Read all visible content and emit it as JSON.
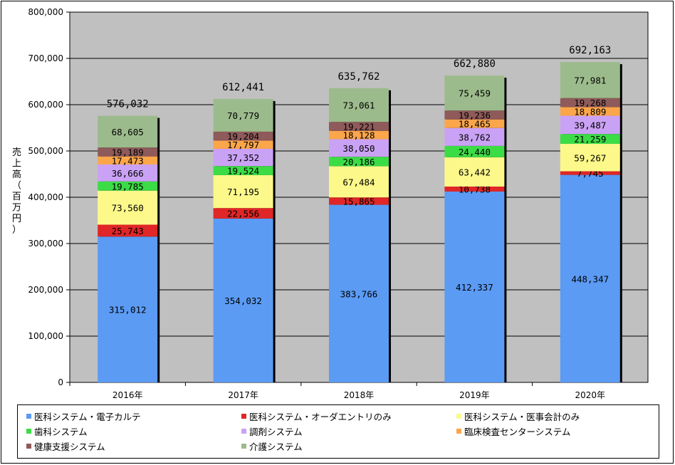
{
  "chart_data": {
    "type": "stacked-bar",
    "ylabel": "売上高（百万円）",
    "ylim": [
      0,
      800000
    ],
    "ytick_step": 100000,
    "ytick_labels": [
      "0",
      "100,000",
      "200,000",
      "300,000",
      "400,000",
      "500,000",
      "600,000",
      "700,000",
      "800,000"
    ],
    "categories": [
      "2016年",
      "2017年",
      "2018年",
      "2019年",
      "2020年"
    ],
    "totals": [
      576032,
      612441,
      635762,
      662880,
      692163
    ],
    "total_labels": [
      "576,032",
      "612,441",
      "635,762",
      "662,880",
      "692,163"
    ],
    "series": [
      {
        "name": "医科システム・電子カルテ",
        "color": "#5b9bf4",
        "values": [
          315012,
          354032,
          383766,
          412337,
          448347
        ],
        "labels": [
          "315,012",
          "354,032",
          "383,766",
          "412,337",
          "448,347"
        ]
      },
      {
        "name": "医科システム・オーダエントリのみ",
        "color": "#e02626",
        "values": [
          25743,
          22556,
          15865,
          10738,
          7745
        ],
        "labels": [
          "25,743",
          "22,556",
          "15,865",
          "10,738",
          "7,745"
        ]
      },
      {
        "name": "医科システム・医事会計のみ",
        "color": "#fcf88a",
        "values": [
          73560,
          71195,
          67484,
          63442,
          59267
        ],
        "labels": [
          "73,560",
          "71,195",
          "67,484",
          "63,442",
          "59,267"
        ]
      },
      {
        "name": "歯科システム",
        "color": "#3cdc46",
        "values": [
          19785,
          19524,
          20186,
          24440,
          21259
        ],
        "labels": [
          "19,785",
          "19,524",
          "20,186",
          "24,440",
          "21,259"
        ]
      },
      {
        "name": "調剤システム",
        "color": "#caa2f5",
        "values": [
          36666,
          37352,
          38050,
          38762,
          39487
        ],
        "labels": [
          "36,666",
          "37,352",
          "38,050",
          "38,762",
          "39,487"
        ]
      },
      {
        "name": "臨床検査センターシステム",
        "color": "#fba64a",
        "values": [
          17473,
          17797,
          18128,
          18465,
          18809
        ],
        "labels": [
          "17,473",
          "17,797",
          "18,128",
          "18,465",
          "18,809"
        ]
      },
      {
        "name": "健康支援システム",
        "color": "#8f5a5a",
        "values": [
          19189,
          19204,
          19221,
          19236,
          19268
        ],
        "labels": [
          "19,189",
          "19,204",
          "19,221",
          "19,236",
          "19,268"
        ]
      },
      {
        "name": "介護システム",
        "color": "#9cbb8c",
        "values": [
          68605,
          70779,
          73061,
          75459,
          77981
        ],
        "labels": [
          "68,605",
          "70,779",
          "73,061",
          "75,459",
          "77,981"
        ]
      }
    ],
    "plot_background": "#c0c0c0",
    "grid": true,
    "legend_position": "bottom"
  }
}
